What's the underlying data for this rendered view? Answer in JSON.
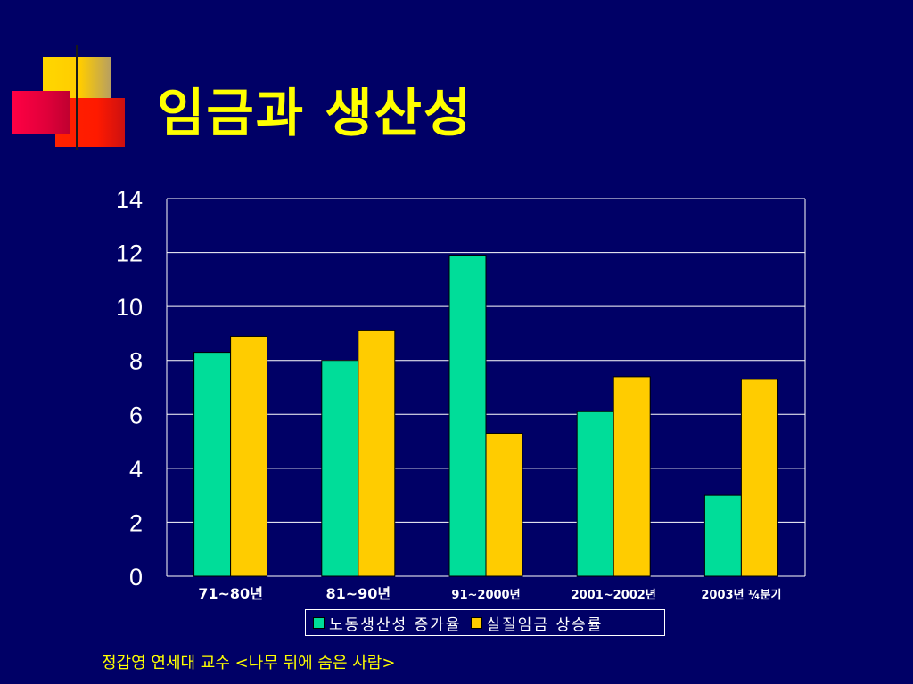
{
  "slide": {
    "title": "임금과 생산성",
    "footer": "정갑영 연세대 교수 <나무 뒤에 숨은 사람>"
  },
  "colors": {
    "background": "#000066",
    "title": "#ffff00",
    "productivity": "#00dd99",
    "wages": "#ffcc00",
    "grid": "#ffffff"
  },
  "chart_data": {
    "type": "bar",
    "title": "",
    "xlabel": "",
    "ylabel": "",
    "categories": [
      "71~80년",
      "81~90년",
      "91~2000년",
      "2001~2002년",
      "2003년 ¼분기"
    ],
    "series": [
      {
        "name": "노동생산성 증가율",
        "values": [
          8.3,
          8.0,
          11.9,
          6.1,
          3.0
        ]
      },
      {
        "name": "실질임금 상승률",
        "values": [
          8.9,
          9.1,
          5.3,
          7.4,
          7.3
        ]
      }
    ],
    "ylim": [
      0,
      14
    ],
    "yticks": [
      0,
      2,
      4,
      6,
      8,
      10,
      12,
      14
    ],
    "grid": true,
    "legend_position": "bottom"
  }
}
